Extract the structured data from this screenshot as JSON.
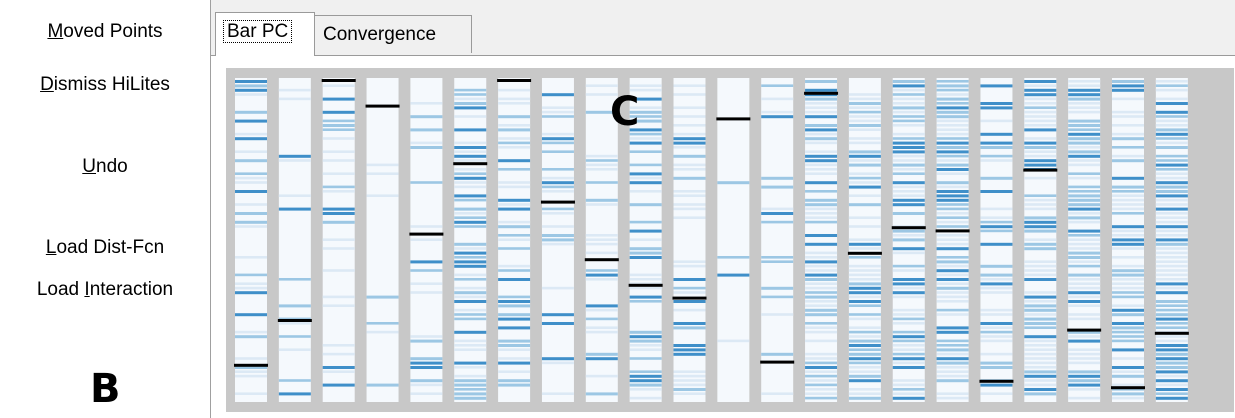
{
  "sidebar": {
    "buttons": [
      {
        "pre": "",
        "ul": "M",
        "post": "oved Points"
      },
      {
        "pre": "",
        "ul": "D",
        "post": "ismiss HiLites"
      },
      {
        "pre": "",
        "ul": "U",
        "post": "ndo"
      },
      {
        "pre": "",
        "ul": "L",
        "post": "oad Dist-Fcn"
      },
      {
        "pre": "Load ",
        "ul": "I",
        "post": "nteraction"
      }
    ],
    "label_b": "B"
  },
  "tabs": [
    {
      "label": "Bar PC",
      "active": true
    },
    {
      "label": "Convergence",
      "active": false
    }
  ],
  "plot_label": "C",
  "chart_data": {
    "type": "heatmap",
    "title": "",
    "column_count": 22,
    "colors": {
      "background": "#c8c8c8",
      "bar_base": "#f5f9fd",
      "stripe_light": "#dce9f5",
      "stripe_mid": "#9cc7e4",
      "stripe_dark": "#3f8fc9",
      "marker": "#000000"
    },
    "highlight_markers": [
      0.89,
      0.75,
      0.0,
      0.08,
      0.48,
      0.26,
      0.0,
      0.38,
      0.56,
      0.64,
      0.68,
      0.12,
      0.88,
      0.04,
      0.54,
      0.46,
      0.47,
      0.94,
      0.28,
      0.78,
      0.96,
      0.79
    ],
    "column_seeds": [
      3,
      11,
      7,
      19,
      5,
      23,
      13,
      29,
      2,
      31,
      17,
      37,
      41,
      43,
      47,
      53,
      59,
      61,
      67,
      71,
      73,
      79
    ],
    "column_density": [
      0.45,
      0.22,
      0.35,
      0.15,
      0.3,
      0.7,
      0.55,
      0.4,
      0.38,
      0.6,
      0.45,
      0.1,
      0.25,
      0.75,
      0.8,
      0.8,
      0.85,
      0.5,
      0.8,
      0.85,
      0.75,
      0.85
    ]
  }
}
